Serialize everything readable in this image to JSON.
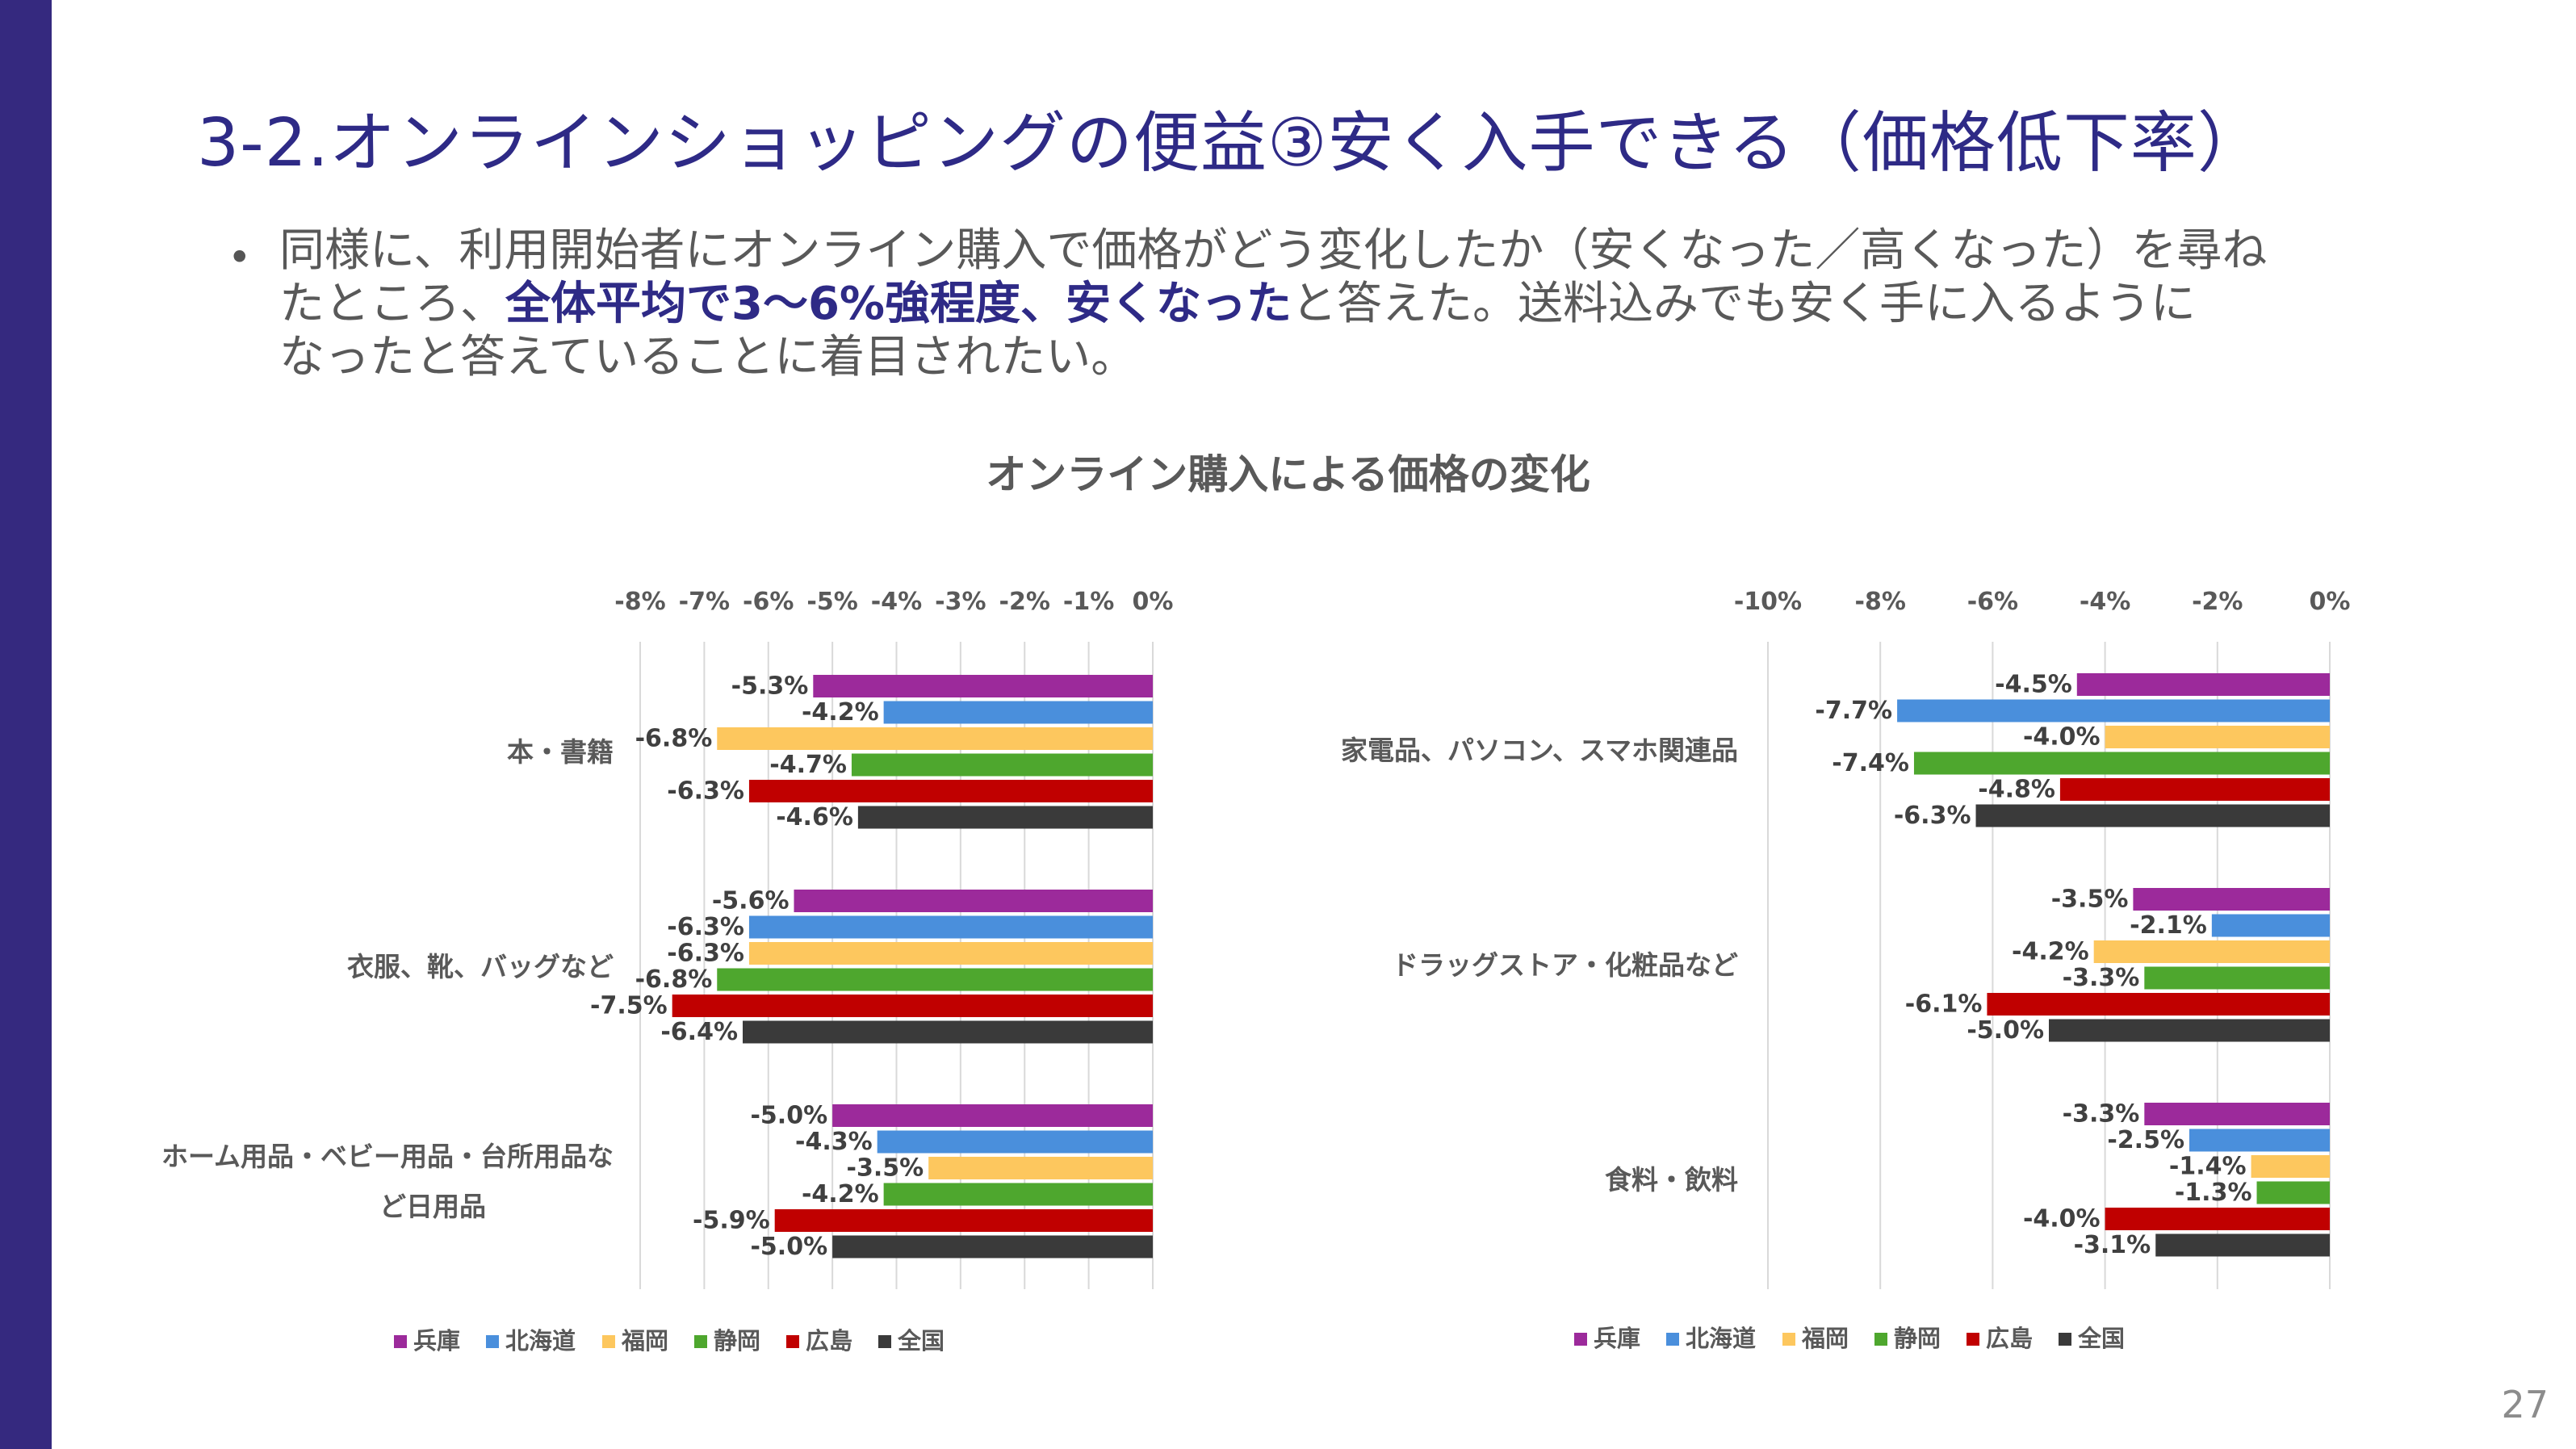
{
  "slide": {
    "title": "3-2.オンラインショッピングの便益③安く入手できる（価格低下率）",
    "body_line1": "同様に、利用開始者にオンライン購入で価格がどう変化したか（安くなった／高くなった）を尋ね",
    "body_line2_pre": "たところ、",
    "body_line2_em": "全体平均で3～6%強程度、安くなった",
    "body_line2_post": "と答えた。送料込みでも安く手に入るように",
    "body_line3": "なったと答えていることに着目されたい。",
    "page_number": "27"
  },
  "chart_title": "オンライン購入による価格の変化",
  "chart_data": [
    {
      "type": "bar",
      "orientation": "horizontal",
      "xlim": [
        -8,
        0
      ],
      "ticks": [
        "-8%",
        "-7%",
        "-6%",
        "-5%",
        "-4%",
        "-3%",
        "-2%",
        "-1%",
        "0%"
      ],
      "grid": true,
      "legend_position": "bottom",
      "categories": [
        "本・書籍",
        "衣服、靴、バッグなど",
        "ホーム用品・ベビー用品・台所用品など日用品"
      ],
      "category_lines": [
        [
          "本・書籍"
        ],
        [
          "衣服、靴、バッグなど"
        ],
        [
          "ホーム用品・ベビー用品・台所用品な",
          "ど日用品"
        ]
      ],
      "series": [
        {
          "name": "兵庫",
          "color": "#9c2a9b",
          "values": [
            -5.3,
            -5.6,
            -5.0
          ],
          "labels": [
            "-5.3%",
            "-5.6%",
            "-5.0%"
          ]
        },
        {
          "name": "北海道",
          "color": "#4a8fdc",
          "values": [
            -4.2,
            -6.3,
            -4.3
          ],
          "labels": [
            "-4.2%",
            "-6.3%",
            "-4.3%"
          ]
        },
        {
          "name": "福岡",
          "color": "#fdc75e",
          "values": [
            -6.8,
            -6.3,
            -3.5
          ],
          "labels": [
            "-6.8%",
            "-6.3%",
            "-3.5%"
          ]
        },
        {
          "name": "静岡",
          "color": "#4ea72e",
          "values": [
            -4.7,
            -6.8,
            -4.2
          ],
          "labels": [
            "-4.7%",
            "-6.8%",
            "-4.2%"
          ]
        },
        {
          "name": "広島",
          "color": "#c00000",
          "values": [
            -6.3,
            -7.5,
            -5.9
          ],
          "labels": [
            "-6.3%",
            "-7.5%",
            "-5.9%"
          ]
        },
        {
          "name": "全国",
          "color": "#3a3a3a",
          "values": [
            -4.6,
            -6.4,
            -5.0
          ],
          "labels": [
            "-4.6%",
            "-6.4%",
            "-5.0%"
          ]
        }
      ]
    },
    {
      "type": "bar",
      "orientation": "horizontal",
      "xlim": [
        -10,
        0
      ],
      "ticks": [
        "-10%",
        "-8%",
        "-6%",
        "-4%",
        "-2%",
        "0%"
      ],
      "grid": true,
      "legend_position": "bottom",
      "categories": [
        "家電品、パソコン、スマホ関連品",
        "ドラッグストア・化粧品など",
        "食料・飲料"
      ],
      "category_lines": [
        [
          "家電品、パソコン、スマホ関連品"
        ],
        [
          "ドラッグストア・化粧品など"
        ],
        [
          "食料・飲料"
        ]
      ],
      "series": [
        {
          "name": "兵庫",
          "color": "#9c2a9b",
          "values": [
            -4.5,
            -3.5,
            -3.3
          ],
          "labels": [
            "-4.5%",
            "-3.5%",
            "-3.3%"
          ]
        },
        {
          "name": "北海道",
          "color": "#4a8fdc",
          "values": [
            -7.7,
            -2.1,
            -2.5
          ],
          "labels": [
            "-7.7%",
            "-2.1%",
            "-2.5%"
          ]
        },
        {
          "name": "福岡",
          "color": "#fdc75e",
          "values": [
            -4.0,
            -4.2,
            -1.4
          ],
          "labels": [
            "-4.0%",
            "-4.2%",
            "-1.4%"
          ]
        },
        {
          "name": "静岡",
          "color": "#4ea72e",
          "values": [
            -7.4,
            -3.3,
            -1.3
          ],
          "labels": [
            "-7.4%",
            "-3.3%",
            "-1.3%"
          ]
        },
        {
          "name": "広島",
          "color": "#c00000",
          "values": [
            -4.8,
            -6.1,
            -4.0
          ],
          "labels": [
            "-4.8%",
            "-6.1%",
            "-4.0%"
          ]
        },
        {
          "name": "全国",
          "color": "#3a3a3a",
          "values": [
            -6.3,
            -5.0,
            -3.1
          ],
          "labels": [
            "-6.3%",
            "-5.0%",
            "-3.1%"
          ]
        }
      ]
    }
  ]
}
